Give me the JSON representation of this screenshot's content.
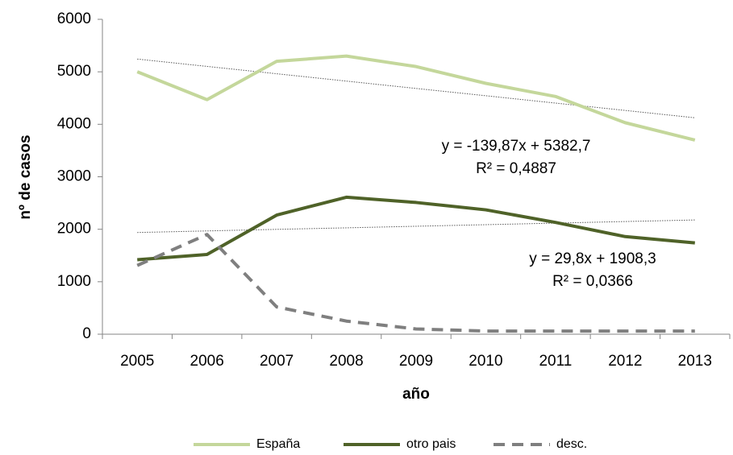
{
  "chart_data": {
    "type": "line",
    "x_label": "año",
    "y_label": "nº de casos",
    "categories": [
      "2005",
      "2006",
      "2007",
      "2008",
      "2009",
      "2010",
      "2011",
      "2012",
      "2013"
    ],
    "series": [
      {
        "name": "España",
        "color": "#c4d79b",
        "dash": false,
        "values": [
          5000,
          4470,
          5200,
          5300,
          5100,
          4780,
          4530,
          4030,
          3700
        ]
      },
      {
        "name": "otro pais",
        "color": "#4f6228",
        "dash": false,
        "values": [
          1420,
          1520,
          2270,
          2610,
          2510,
          2370,
          2130,
          1860,
          1740
        ]
      },
      {
        "name": "desc.",
        "color": "#7f7f7f",
        "dash": true,
        "values": [
          1310,
          1900,
          520,
          250,
          100,
          60,
          60,
          60,
          60
        ]
      }
    ],
    "trendlines": [
      {
        "color": "#595959",
        "values": [
          5243,
          5103,
          4963,
          4823,
          4683,
          4544,
          4404,
          4264,
          4124
        ]
      },
      {
        "color": "#595959",
        "values": [
          1938,
          1968,
          1998,
          2027,
          2057,
          2087,
          2117,
          2147,
          2177
        ]
      }
    ],
    "annotations": [
      [
        "y = -139,87x + 5382,7",
        "R² = 0,4887"
      ],
      [
        "y = 29,8x + 1908,3",
        "R² = 0,0366"
      ]
    ],
    "ylim": [
      0,
      6000
    ],
    "yticks": [
      0,
      1000,
      2000,
      3000,
      4000,
      5000,
      6000
    ],
    "grid": false,
    "legend": "bottom"
  }
}
